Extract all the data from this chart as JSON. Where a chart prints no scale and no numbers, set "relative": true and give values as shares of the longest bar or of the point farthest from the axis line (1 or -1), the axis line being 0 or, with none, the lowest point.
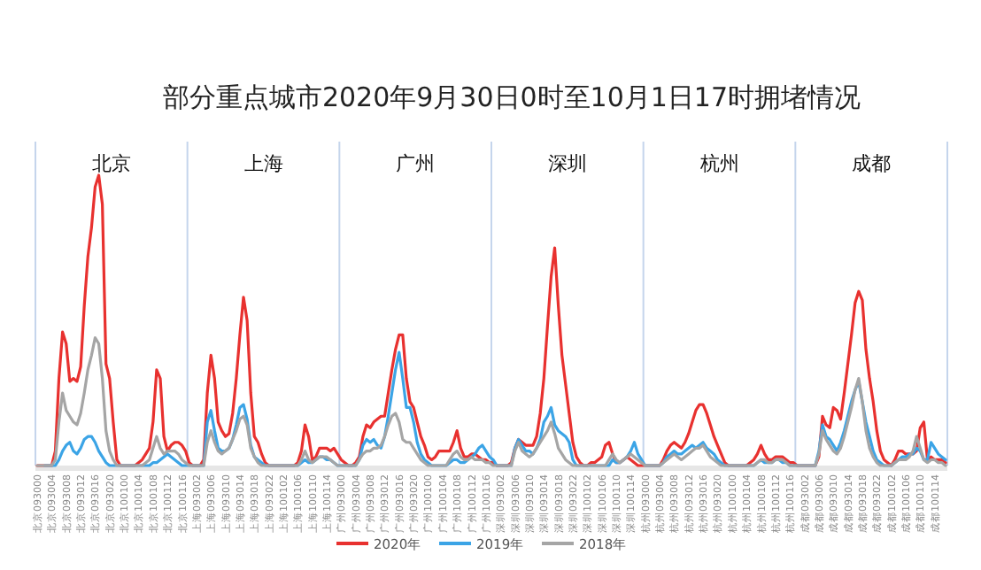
{
  "chart_data": {
    "type": "line",
    "relative": true,
    "title": "部分重点城市2020年9月30日0时至10月1日17时拥堵情况",
    "annotations": [
      "北京",
      "上海",
      "广州",
      "深圳",
      "杭州",
      "成都"
    ],
    "legend": "bottom",
    "categories": [
      "北京093000",
      null,
      null,
      null,
      "北京093004",
      null,
      null,
      null,
      "北京093008",
      null,
      null,
      null,
      "北京093012",
      null,
      null,
      null,
      "北京093016",
      null,
      null,
      null,
      "北京093020",
      null,
      null,
      null,
      "北京100100",
      null,
      null,
      null,
      "北京100104",
      null,
      null,
      null,
      "北京100108",
      null,
      null,
      null,
      "北京100112",
      null,
      null,
      null,
      "北京100116",
      null,
      null,
      null,
      "上海093002",
      null,
      null,
      null,
      "上海093006",
      null,
      null,
      null,
      "上海093010",
      null,
      null,
      null,
      "上海093014",
      null,
      null,
      null,
      "上海093018",
      null,
      null,
      null,
      "上海093022",
      null,
      null,
      null,
      "上海100102",
      null,
      null,
      null,
      "上海100106",
      null,
      null,
      null,
      "上海100110",
      null,
      null,
      null,
      "上海100114",
      null,
      null,
      null,
      "广州093000",
      null,
      null,
      null,
      "广州093004",
      null,
      null,
      null,
      "广州093008",
      null,
      null,
      null,
      "广州093012",
      null,
      null,
      null,
      "广州093016",
      null,
      null,
      null,
      "广州093020",
      null,
      null,
      null,
      "广州100100",
      null,
      null,
      null,
      "广州100104",
      null,
      null,
      null,
      "广州100108",
      null,
      null,
      null,
      "广州100112",
      null,
      null,
      null,
      "广州100116",
      null,
      null,
      null,
      "深圳093002",
      null,
      null,
      null,
      "深圳093006",
      null,
      null,
      null,
      "深圳093010",
      null,
      null,
      null,
      "深圳093014",
      null,
      null,
      null,
      "深圳093018",
      null,
      null,
      null,
      "深圳093022",
      null,
      null,
      null,
      "深圳100102",
      null,
      null,
      null,
      "深圳100106",
      null,
      null,
      null,
      "深圳100110",
      null,
      null,
      null,
      "深圳100114",
      null,
      null,
      null,
      "杭州093000",
      null,
      null,
      null,
      "杭州093004",
      null,
      null,
      null,
      "杭州093008",
      null,
      null,
      null,
      "杭州093012",
      null,
      null,
      null,
      "杭州093016",
      null,
      null,
      null,
      "杭州093020",
      null,
      null,
      null,
      "杭州100100",
      null,
      null,
      null,
      "杭州100104",
      null,
      null,
      null,
      "杭州100108",
      null,
      null,
      null,
      "杭州100112",
      null,
      null,
      null,
      "杭州100116",
      null,
      null,
      null,
      "成都093002",
      null,
      null,
      null,
      "成都093006",
      null,
      null,
      null,
      "成都093010",
      null,
      null,
      null,
      "成都093014",
      null,
      null,
      null,
      "成都093018",
      null,
      null,
      null,
      "成都093022",
      null,
      null,
      null,
      "成都100102",
      null,
      null,
      null,
      "成都100106",
      null,
      null,
      null,
      "成都100110",
      null,
      null,
      null,
      "成都100114",
      null,
      null,
      null
    ],
    "series": [
      {
        "name": "2020年",
        "color": "#e8312f",
        "values": [
          0,
          0,
          0,
          0,
          0,
          0.05,
          0.3,
          0.46,
          0.42,
          0.29,
          0.3,
          0.29,
          0.34,
          0.55,
          0.72,
          0.82,
          0.96,
          1,
          0.9,
          0.35,
          0.3,
          0.15,
          0.02,
          0,
          0,
          0,
          0,
          0,
          0.01,
          0.02,
          0.04,
          0.06,
          0.15,
          0.33,
          0.3,
          0.1,
          0.05,
          0.07,
          0.08,
          0.08,
          0.07,
          0.05,
          0.01,
          0,
          0,
          0,
          0.02,
          0.25,
          0.38,
          0.3,
          0.15,
          0.12,
          0.1,
          0.11,
          0.18,
          0.3,
          0.45,
          0.58,
          0.5,
          0.25,
          0.1,
          0.08,
          0.04,
          0.01,
          0,
          0,
          0,
          0,
          0,
          0,
          0,
          0,
          0.01,
          0.05,
          0.14,
          0.1,
          0.02,
          0.03,
          0.06,
          0.06,
          0.06,
          0.05,
          0.06,
          0.04,
          0.02,
          0.01,
          0,
          0,
          0.01,
          0.03,
          0.1,
          0.14,
          0.13,
          0.15,
          0.16,
          0.17,
          0.17,
          0.25,
          0.33,
          0.4,
          0.45,
          0.45,
          0.3,
          0.22,
          0.2,
          0.15,
          0.1,
          0.07,
          0.03,
          0.02,
          0.03,
          0.05,
          0.05,
          0.05,
          0.05,
          0.08,
          0.12,
          0.06,
          0.03,
          0.03,
          0.04,
          0.04,
          0.03,
          0.02,
          0.02,
          0.01,
          0.01,
          0,
          0,
          0,
          0,
          0.01,
          0.06,
          0.09,
          0.08,
          0.07,
          0.07,
          0.07,
          0.1,
          0.18,
          0.3,
          0.48,
          0.65,
          0.75,
          0.55,
          0.38,
          0.28,
          0.18,
          0.08,
          0.03,
          0.01,
          0,
          0,
          0.01,
          0.01,
          0.02,
          0.03,
          0.07,
          0.08,
          0.04,
          0.01,
          0.01,
          0.02,
          0.03,
          0.02,
          0.01,
          0,
          0,
          0,
          0,
          0,
          0,
          0,
          0.02,
          0.05,
          0.07,
          0.08,
          0.07,
          0.06,
          0.08,
          0.11,
          0.15,
          0.19,
          0.21,
          0.21,
          0.18,
          0.14,
          0.1,
          0.07,
          0.04,
          0.01,
          0,
          0,
          0,
          0,
          0,
          0,
          0.01,
          0.02,
          0.04,
          0.07,
          0.04,
          0.02,
          0.02,
          0.03,
          0.03,
          0.03,
          0.02,
          0.01,
          0.01,
          0,
          0,
          0,
          0,
          0,
          0,
          0.03,
          0.17,
          0.14,
          0.13,
          0.2,
          0.19,
          0.16,
          0.25,
          0.35,
          0.45,
          0.56,
          0.6,
          0.57,
          0.4,
          0.3,
          0.22,
          0.12,
          0.05,
          0.02,
          0.01,
          0,
          0.02,
          0.05,
          0.05,
          0.04,
          0.04,
          0.04,
          0.05,
          0.13,
          0.15,
          0.02,
          0.03,
          0.02,
          0.02,
          0.02,
          0.01
        ]
      },
      {
        "name": "2019年",
        "color": "#3ba4e6",
        "values": [
          null,
          null,
          0,
          0,
          0,
          0,
          0.02,
          0.05,
          0.07,
          0.08,
          0.05,
          0.04,
          0.06,
          0.09,
          0.1,
          0.1,
          0.08,
          0.05,
          0.03,
          0.01,
          0,
          0,
          0,
          0,
          0,
          0,
          0,
          0,
          0,
          0,
          0,
          0,
          0.01,
          0.01,
          0.02,
          0.03,
          0.04,
          0.03,
          0.02,
          0.01,
          0,
          0,
          0,
          0,
          0,
          0,
          0,
          0.15,
          0.19,
          0.12,
          0.06,
          0.05,
          0.05,
          0.06,
          0.09,
          0.14,
          0.2,
          0.21,
          0.16,
          0.07,
          0.03,
          0.02,
          0.01,
          0,
          0,
          0,
          0,
          0,
          0,
          0,
          0,
          0,
          0,
          0.01,
          0.02,
          0.01,
          0.01,
          0.02,
          0.03,
          0.03,
          0.02,
          0.02,
          0.01,
          0,
          0,
          0,
          0,
          0,
          0,
          0.02,
          0.07,
          0.09,
          0.08,
          0.09,
          0.07,
          0.06,
          0.1,
          0.17,
          0.25,
          0.33,
          0.39,
          0.3,
          0.2,
          0.2,
          0.15,
          0.08,
          0.04,
          0.02,
          0.01,
          0,
          0,
          0,
          0,
          0,
          0.01,
          0.02,
          0.02,
          0.01,
          0.01,
          0.02,
          0.03,
          0.04,
          0.06,
          0.07,
          0.05,
          0.03,
          0.02,
          0,
          0,
          0,
          0,
          0,
          0.06,
          0.09,
          0.07,
          0.05,
          0.05,
          0.04,
          0.06,
          0.09,
          0.15,
          0.17,
          0.2,
          0.14,
          0.12,
          0.11,
          0.1,
          0.08,
          0.02,
          0,
          0,
          0,
          0,
          0,
          0,
          0,
          0,
          0,
          0,
          0.02,
          0.01,
          0.01,
          0.02,
          0.03,
          0.05,
          0.08,
          0.04,
          0.02,
          0,
          0,
          0,
          0,
          0,
          0.01,
          0.03,
          0.04,
          0.05,
          0.04,
          0.04,
          0.05,
          0.06,
          0.07,
          0.06,
          0.07,
          0.08,
          0.06,
          0.05,
          0.04,
          0.02,
          0.01,
          0,
          0,
          0,
          0,
          0,
          0,
          0,
          0,
          0,
          0.01,
          0.02,
          0.01,
          0.01,
          0.01,
          0.02,
          0.02,
          0.01,
          0.01,
          0,
          0,
          0,
          0,
          0,
          0,
          0,
          0,
          0.05,
          0.14,
          0.1,
          0.09,
          0.07,
          0.05,
          0.08,
          0.12,
          0.17,
          0.22,
          0.26,
          0.29,
          0.22,
          0.15,
          0.1,
          0.05,
          0.02,
          0.01,
          0,
          0,
          0,
          0.01,
          0.02,
          0.03,
          0.03,
          0.04,
          0.04,
          0.06,
          0.05,
          0.02,
          0.02,
          0.08,
          0.06,
          0.04,
          0.03,
          0.02
        ]
      },
      {
        "name": "2018年",
        "color": "#a5a5a5",
        "values": [
          0,
          0,
          0,
          0,
          0,
          0.02,
          0.15,
          0.25,
          0.19,
          0.17,
          0.15,
          0.14,
          0.18,
          0.25,
          0.33,
          0.38,
          0.44,
          0.42,
          0.3,
          0.12,
          0.05,
          0.02,
          0,
          0,
          0,
          0,
          0,
          0,
          0,
          0,
          0.01,
          0.02,
          0.06,
          0.1,
          0.06,
          0.04,
          0.05,
          0.05,
          0.05,
          0.04,
          0.02,
          0.01,
          0,
          0,
          0,
          0,
          0,
          0.08,
          0.12,
          0.08,
          0.05,
          0.04,
          0.05,
          0.06,
          0.09,
          0.12,
          0.16,
          0.17,
          0.14,
          0.06,
          0.03,
          0.01,
          0,
          0,
          0,
          0,
          0,
          0,
          0,
          0,
          0,
          0,
          0,
          0.02,
          0.05,
          0.02,
          0.01,
          0.02,
          0.03,
          0.03,
          0.03,
          0.02,
          0.01,
          0,
          0,
          0,
          0,
          0,
          0,
          0.02,
          0.04,
          0.05,
          0.05,
          0.06,
          0.06,
          0.07,
          0.1,
          0.14,
          0.17,
          0.18,
          0.15,
          0.09,
          0.08,
          0.08,
          0.06,
          0.04,
          0.02,
          0.01,
          0,
          0,
          0,
          0,
          0,
          0,
          0.02,
          0.04,
          0.05,
          0.03,
          0.02,
          0.02,
          0.03,
          0.02,
          0.02,
          0.02,
          0.01,
          0.01,
          0,
          0,
          0,
          0,
          0,
          0,
          0.05,
          0.08,
          0.05,
          0.04,
          0.03,
          0.04,
          0.06,
          0.08,
          0.1,
          0.12,
          0.15,
          0.11,
          0.06,
          0.04,
          0.02,
          0.01,
          0,
          0,
          0,
          0,
          0,
          0,
          0,
          0,
          0,
          0,
          0.02,
          0.04,
          0.02,
          0.01,
          0.02,
          0.03,
          0.04,
          0.03,
          0.02,
          0.01,
          0,
          0,
          0,
          0,
          0,
          0.01,
          0.02,
          0.03,
          0.04,
          0.03,
          0.02,
          0.03,
          0.04,
          0.05,
          0.06,
          0.06,
          0.07,
          0.05,
          0.03,
          0.02,
          0.01,
          0,
          0,
          0,
          0,
          0,
          0,
          0,
          0,
          0,
          0,
          0.01,
          0.02,
          0.02,
          0.01,
          0.01,
          0.02,
          0.02,
          0.02,
          0.01,
          0,
          0,
          0,
          0,
          0,
          0,
          0,
          0,
          0.04,
          0.12,
          0.09,
          0.07,
          0.05,
          0.04,
          0.06,
          0.1,
          0.15,
          0.2,
          0.26,
          0.3,
          0.22,
          0.12,
          0.06,
          0.03,
          0.01,
          0,
          0,
          0,
          0,
          0.01,
          0.02,
          0.02,
          0.02,
          0.03,
          0.05,
          0.1,
          0.06,
          0.02,
          0.01,
          0.02,
          0.02,
          0.01,
          0.01,
          0
        ]
      }
    ]
  }
}
